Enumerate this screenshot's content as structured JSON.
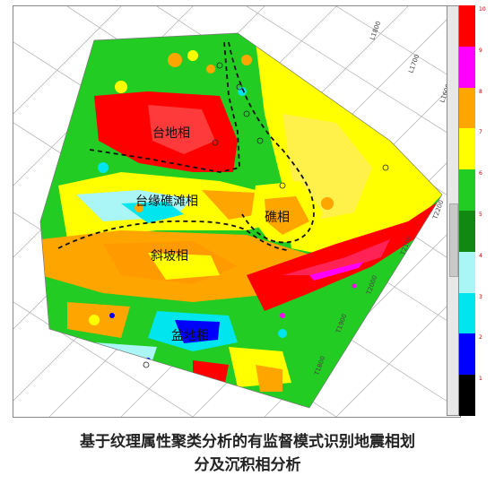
{
  "facies_labels": {
    "platform": "台地相",
    "platform_margin": "台缘礁滩相",
    "reef": "礁相",
    "slope": "斜坡相",
    "basin": "盆地相"
  },
  "grid_labels": [
    "L1800",
    "L1700",
    "L1600",
    "T2200",
    "T2100",
    "T2000",
    "T1900",
    "T1800"
  ],
  "colorbar": {
    "ticks": [
      "10",
      "9",
      "8",
      "7",
      "6",
      "5",
      "4",
      "3",
      "2",
      "1"
    ],
    "colors": [
      "#ff0000",
      "#ff00ff",
      "#ffa500",
      "#ffff00",
      "#22cc22",
      "#118811",
      "#aaf5f5",
      "#00e5ee",
      "#0000ff",
      "#000000"
    ]
  },
  "caption": {
    "line1": "基于纹理属性聚类分析的有监督模式识别地震相划",
    "line2": "分及沉积相分析"
  }
}
